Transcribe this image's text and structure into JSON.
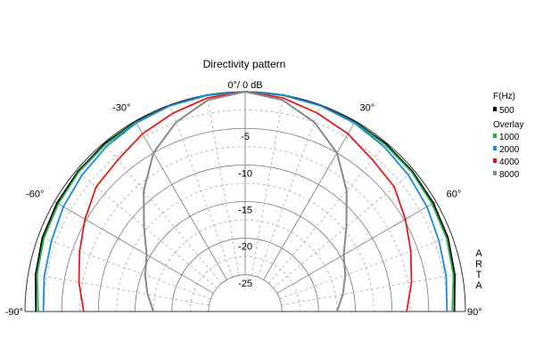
{
  "chart_data": {
    "type": "polar-line",
    "title": "Directivity pattern",
    "angle_range_deg": [
      -90,
      90
    ],
    "radius_range_db": [
      -30,
      0
    ],
    "radial_ticks": [
      {
        "value": 0,
        "label": "0°/ 0 dB"
      },
      {
        "value": -5,
        "label": "-5"
      },
      {
        "value": -10,
        "label": "-10"
      },
      {
        "value": -15,
        "label": "-15"
      },
      {
        "value": -20,
        "label": "-20"
      },
      {
        "value": -25,
        "label": "-25"
      }
    ],
    "angle_ticks": [
      {
        "value": -90,
        "label": "-90°"
      },
      {
        "value": -60,
        "label": "-60°"
      },
      {
        "value": -30,
        "label": "-30°"
      },
      {
        "value": 30,
        "label": "30°"
      },
      {
        "value": 60,
        "label": "60°"
      },
      {
        "value": 90,
        "label": "90°"
      }
    ],
    "grid": true,
    "legend": {
      "title": "F(Hz)",
      "overlay_title": "Overlay",
      "placement": "right"
    },
    "series": [
      {
        "name": "500",
        "color": "#000000",
        "angles": [
          -90,
          -80,
          -70,
          -60,
          -50,
          -40,
          -30,
          -20,
          -10,
          0,
          10,
          20,
          30,
          40,
          50,
          60,
          70,
          80,
          90
        ],
        "values": [
          -1.5,
          -1.0,
          -0.6,
          -0.4,
          -0.25,
          -0.15,
          -0.1,
          -0.05,
          0,
          0,
          0,
          -0.05,
          -0.1,
          -0.15,
          -0.25,
          -0.4,
          -0.6,
          -1.0,
          -1.5
        ]
      },
      {
        "name": "1000",
        "color": "#22b04a",
        "angles": [
          -90,
          -80,
          -70,
          -60,
          -50,
          -40,
          -30,
          -20,
          -10,
          0,
          10,
          20,
          30,
          40,
          50,
          60,
          70,
          80,
          90
        ],
        "values": [
          -1.8,
          -1.2,
          -0.8,
          -0.6,
          -0.4,
          -0.3,
          -0.2,
          -0.1,
          -0.05,
          0,
          -0.05,
          -0.1,
          -0.2,
          -0.3,
          -0.4,
          -0.6,
          -0.8,
          -1.2,
          -1.8
        ]
      },
      {
        "name": "2000",
        "color": "#1e88e0",
        "angles": [
          -90,
          -80,
          -70,
          -60,
          -50,
          -40,
          -30,
          -20,
          -10,
          0,
          10,
          20,
          30,
          40,
          50,
          60,
          70,
          80,
          90
        ],
        "values": [
          -2.5,
          -2.2,
          -1.9,
          -1.4,
          -1.0,
          -0.6,
          -0.3,
          -0.1,
          0,
          0,
          0,
          -0.1,
          -0.3,
          -0.6,
          -1.0,
          -1.4,
          -1.9,
          -2.2,
          -2.5
        ]
      },
      {
        "name": "4000",
        "color": "#e01e1e",
        "angles": [
          -90,
          -80,
          -70,
          -60,
          -50,
          -40,
          -30,
          -20,
          -10,
          0,
          10,
          20,
          30,
          40,
          50,
          60,
          70,
          80,
          90
        ],
        "values": [
          -8.0,
          -7.0,
          -6.0,
          -4.8,
          -3.5,
          -3.0,
          -2.0,
          -1.2,
          -0.4,
          0,
          -0.4,
          -1.2,
          -2.0,
          -3.0,
          -3.5,
          -4.8,
          -6.0,
          -7.0,
          -8.0
        ]
      },
      {
        "name": "8000",
        "color": "#888888",
        "angles": [
          -90,
          -80,
          -70,
          -60,
          -50,
          -40,
          -30,
          -20,
          -10,
          0,
          10,
          20,
          30,
          40,
          50,
          60,
          70,
          80,
          90
        ],
        "values": [
          -17.5,
          -16.5,
          -15.5,
          -14.5,
          -12.0,
          -8.5,
          -5.0,
          -2.5,
          -0.7,
          0,
          -0.7,
          -2.5,
          -5.0,
          -8.5,
          -12.0,
          -14.5,
          -15.5,
          -16.5,
          -17.5
        ]
      }
    ]
  },
  "watermark": "ARTA"
}
